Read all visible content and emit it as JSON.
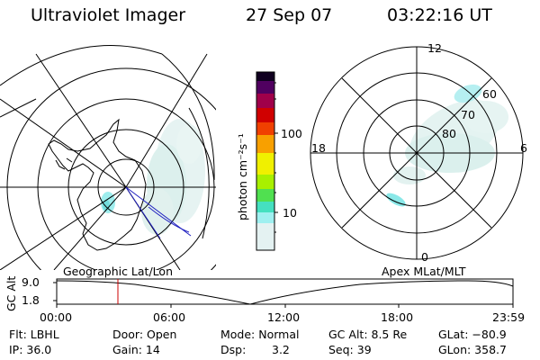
{
  "header": {
    "instrument": "Ultraviolet Imager",
    "date": "27 Sep 07",
    "time": "03:22:16 UT"
  },
  "colorbar": {
    "unit_label": "photon cm⁻²s⁻¹",
    "ticks": [
      {
        "label": "100",
        "value": 100
      },
      {
        "label": "10",
        "value": 10
      }
    ],
    "scale": "log",
    "colors": [
      "#e8f4f4",
      "#9ff0f0",
      "#45e0c0",
      "#50e050",
      "#a8f000",
      "#f0f000",
      "#f8a000",
      "#f04000",
      "#d00000",
      "#a0004a",
      "#500060",
      "#100020"
    ]
  },
  "left_map": {
    "label": "Geographic Lat/Lon"
  },
  "right_map": {
    "label": "Apex MLat/MLT",
    "mlt_labels": {
      "top": "12",
      "left": "18",
      "right": "6",
      "bottom": "0"
    },
    "lat_labels": [
      "60",
      "70",
      "80"
    ]
  },
  "altitude_plot": {
    "axis_label": "GC Alt",
    "y_ticks": [
      "9.0",
      "1.8"
    ],
    "x_ticks": [
      "00:00",
      "06:00",
      "12:00",
      "18:00",
      "23:59"
    ],
    "current_time_color": "#cc0000"
  },
  "status": {
    "filter": "Flt: LBHL",
    "ip": "IP: 36.0",
    "door": "Door: Open",
    "gain": "Gain: 14",
    "mode": "Mode: Normal",
    "dsp_label": "Dsp:",
    "dsp_value": "3.2",
    "gc_alt": "GC Alt: 8.5 Re",
    "seq": "Seq: 39",
    "glat": "GLat: −80.9",
    "glon": "GLon: 358.7"
  }
}
